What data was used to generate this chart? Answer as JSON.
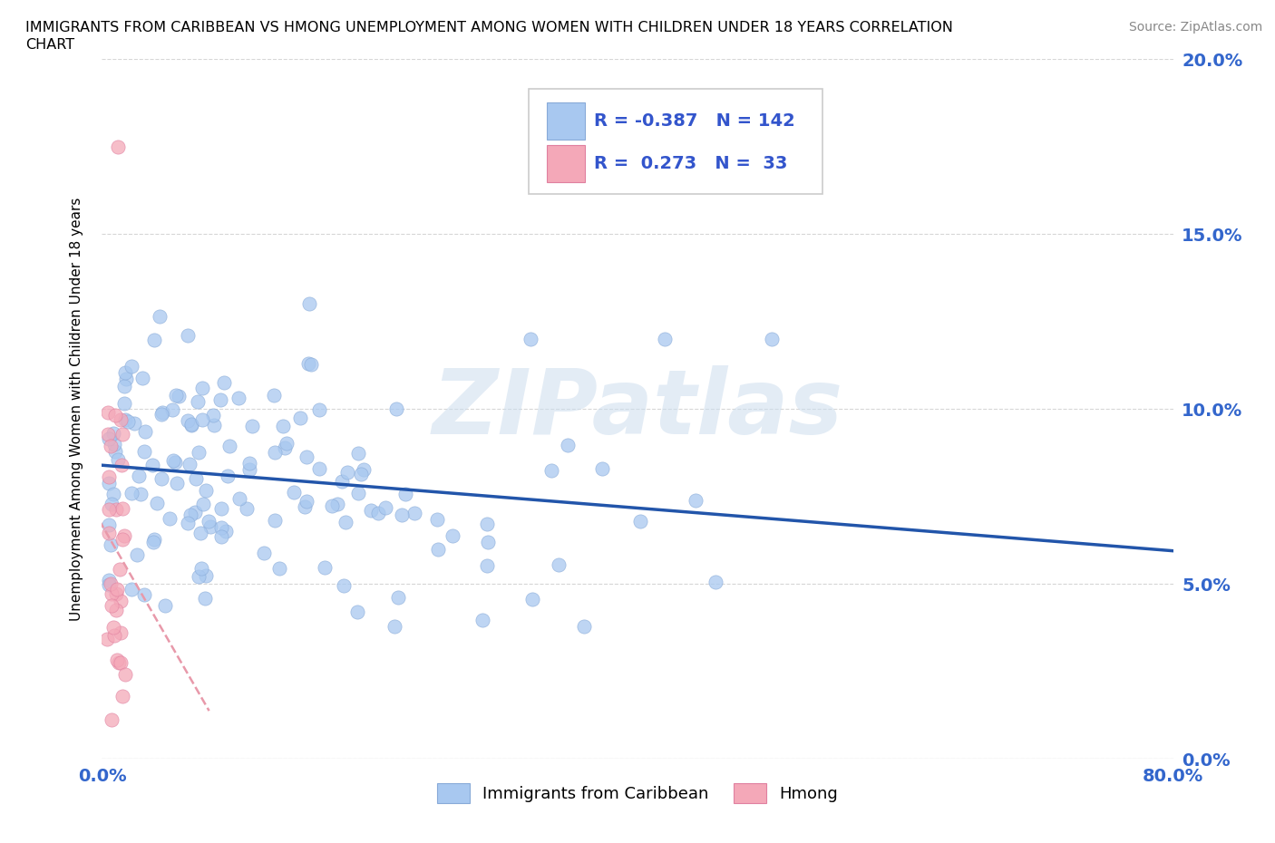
{
  "title_line1": "IMMIGRANTS FROM CARIBBEAN VS HMONG UNEMPLOYMENT AMONG WOMEN WITH CHILDREN UNDER 18 YEARS CORRELATION",
  "title_line2": "CHART",
  "source": "Source: ZipAtlas.com",
  "ylabel": "Unemployment Among Women with Children Under 18 years",
  "xlim": [
    0.0,
    0.8
  ],
  "ylim": [
    0.0,
    0.2
  ],
  "caribbean_color": "#a8c8f0",
  "hmong_color": "#f4a8b8",
  "caribbean_line_color": "#2255aa",
  "hmong_line_color": "#e899aa",
  "R_caribbean": -0.387,
  "N_caribbean": 142,
  "R_hmong": 0.273,
  "N_hmong": 33,
  "background_color": "#ffffff",
  "watermark": "ZIPatlas",
  "legend_text_color": "#3355cc",
  "ytick_color": "#3366cc",
  "xtick_color": "#3366cc"
}
